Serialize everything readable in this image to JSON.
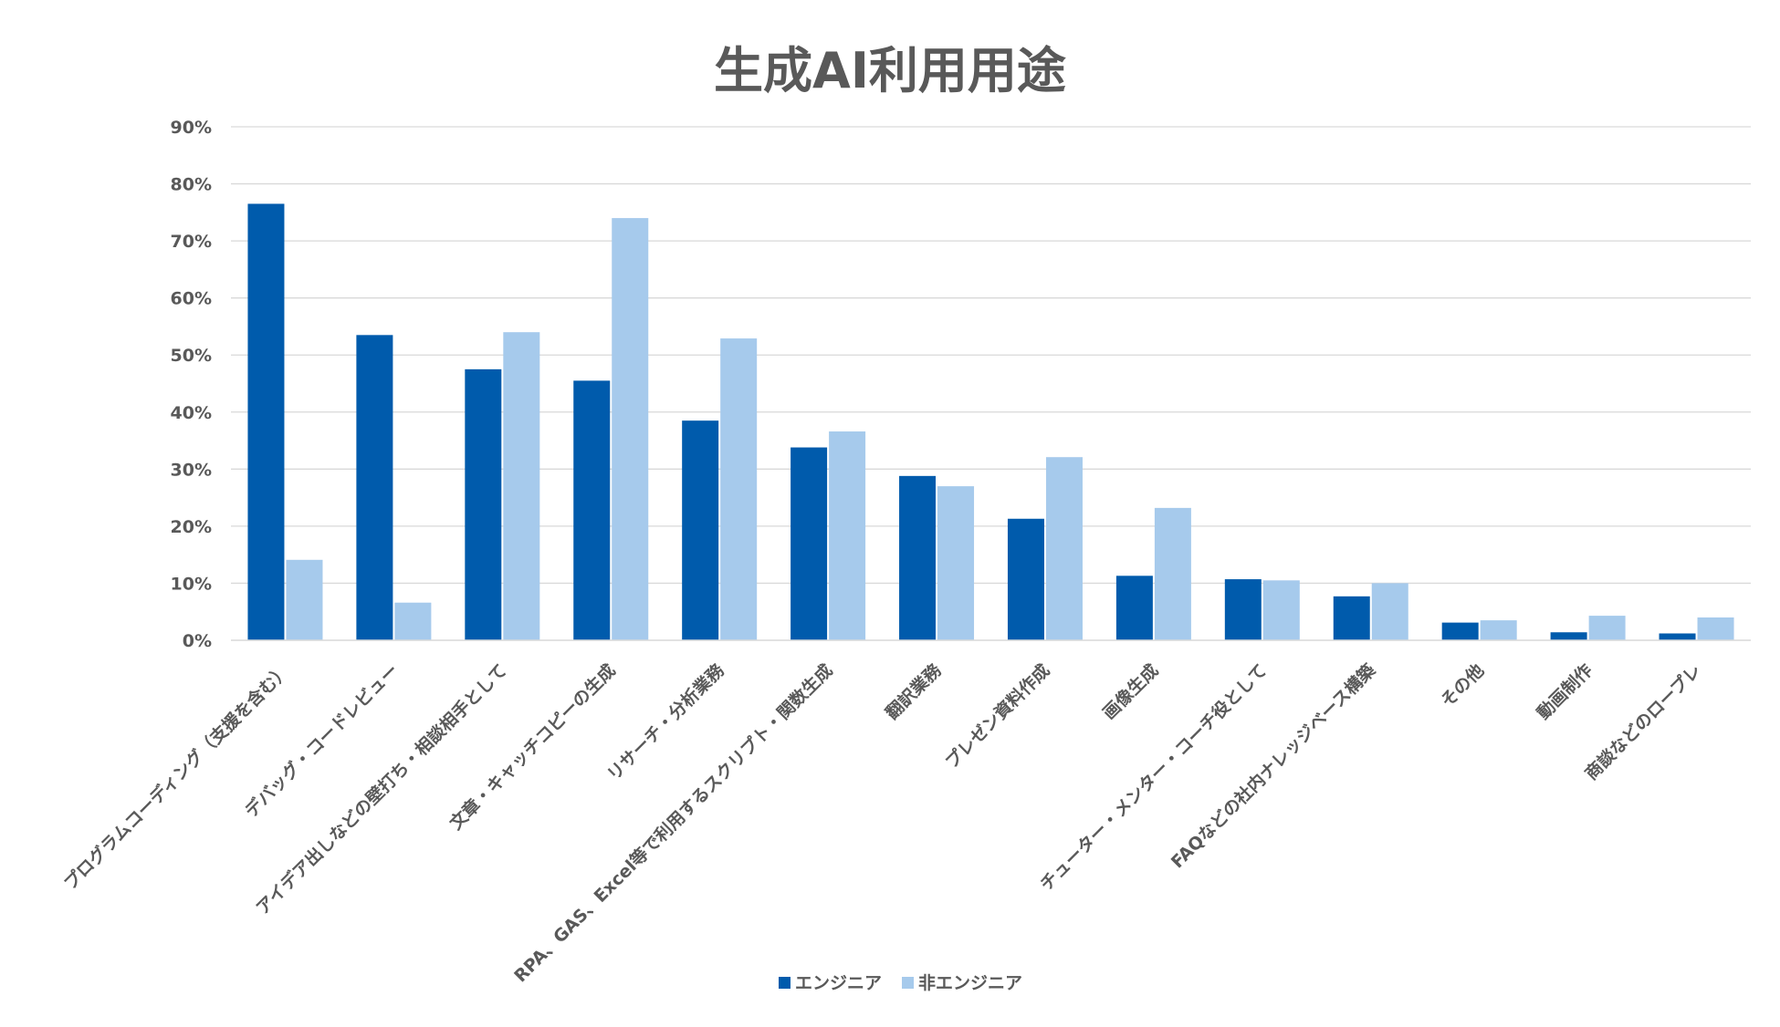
{
  "chart_data": {
    "type": "bar",
    "title": "生成AI利用用途",
    "xlabel": "",
    "ylabel": "",
    "ylim": [
      0,
      90
    ],
    "y_ticks": [
      "0%",
      "10%",
      "20%",
      "30%",
      "40%",
      "50%",
      "60%",
      "70%",
      "80%",
      "90%"
    ],
    "grid": true,
    "legend_position": "bottom",
    "categories": [
      "プログラムコーディング（支援を含む）",
      "デバッグ・コードレビュー",
      "アイデア出しなどの壁打ち・相談相手として",
      "文章・キャッチコピーの生成",
      "リサーチ・分析業務",
      "RPA、GAS、Excel等で利用するスクリプト・関数生成",
      "翻訳業務",
      "プレゼン資料作成",
      "画像生成",
      "チューター・メンター・コーチ役として",
      "FAQなどの社内ナレッジベース構築",
      "その他",
      "動画制作",
      "商談などのロープレ"
    ],
    "series": [
      {
        "name": "エンジニア",
        "color": "#005bac",
        "values": [
          76.5,
          53.5,
          47.5,
          45.5,
          38.5,
          33.8,
          28.8,
          21.3,
          11.3,
          10.7,
          7.7,
          3.1,
          1.4,
          1.2
        ]
      },
      {
        "name": "非エンジニア",
        "color": "#a6caec",
        "values": [
          14.1,
          6.6,
          54.0,
          74.0,
          52.9,
          36.6,
          27.0,
          32.1,
          23.2,
          10.5,
          10.0,
          3.5,
          4.3,
          4.0
        ]
      }
    ]
  }
}
